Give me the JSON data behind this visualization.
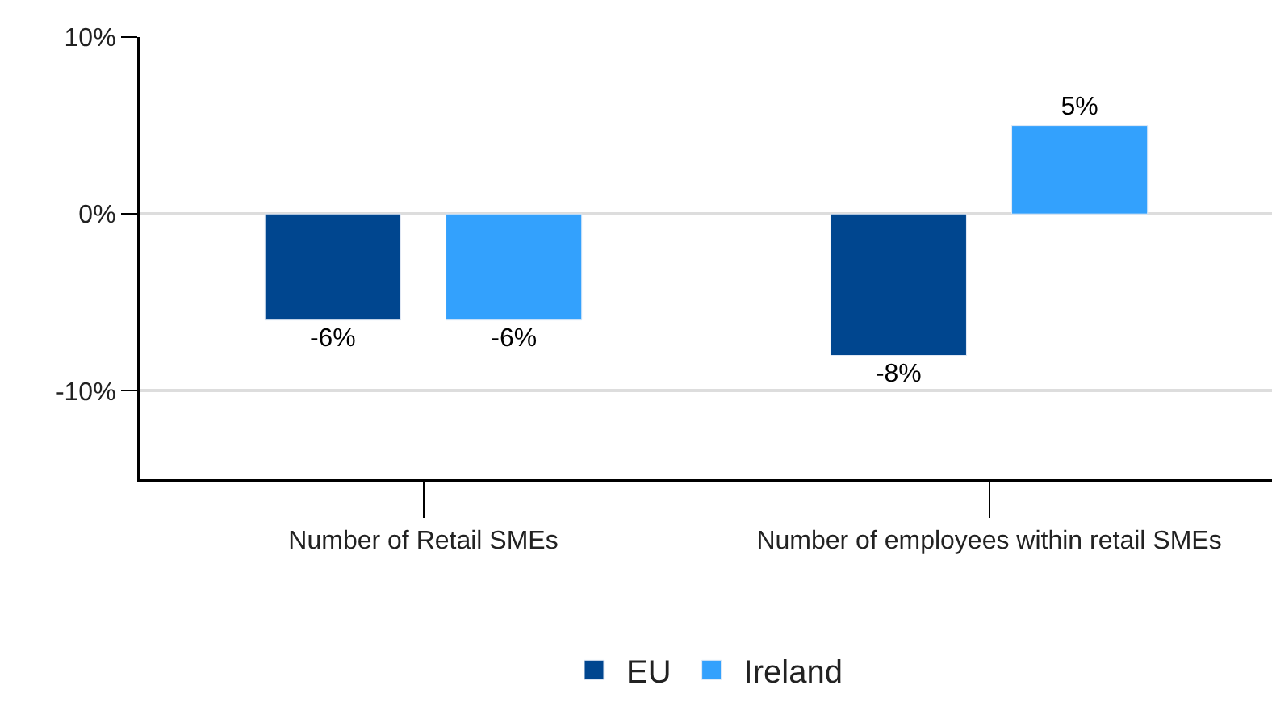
{
  "chart_data": {
    "type": "bar",
    "categories": [
      "Number of Retail SMEs",
      "Number of employees within retail SMEs"
    ],
    "series": [
      {
        "name": "EU",
        "color": "#00468f",
        "values": [
          -6,
          -8
        ],
        "value_labels": [
          "-6%",
          "-8%"
        ]
      },
      {
        "name": "Ireland",
        "color": "#33a1fd",
        "values": [
          -6,
          5
        ],
        "value_labels": [
          "-6%",
          "5%"
        ]
      }
    ],
    "ylim": [
      -15,
      10
    ],
    "yticks": [
      {
        "value": -10,
        "label": "-10%"
      },
      {
        "value": 0,
        "label": "0%"
      },
      {
        "value": 10,
        "label": "10%"
      }
    ],
    "grid": "y",
    "legend": "bottom"
  }
}
